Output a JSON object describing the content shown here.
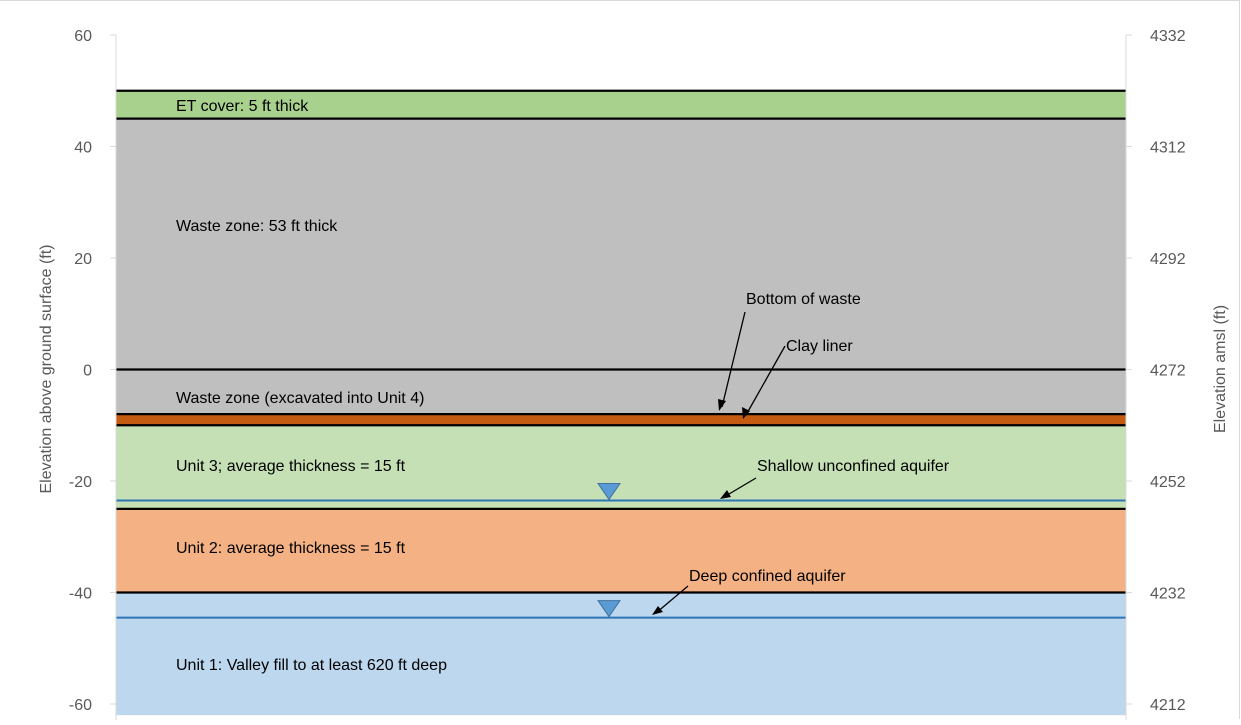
{
  "chart_data": {
    "type": "diagram",
    "y_left": {
      "label": "Elevation above ground surface (ft)",
      "range": [
        -60,
        60
      ],
      "ticks": [
        60,
        40,
        20,
        0,
        -20,
        -40,
        -60
      ]
    },
    "y_right": {
      "label": "Elevation amsl (ft)",
      "ticks": [
        4332,
        4312,
        4292,
        4272,
        4252,
        4232,
        4212
      ]
    },
    "layers": [
      {
        "id": "et-cover",
        "label": "ET cover: 5 ft thick",
        "top": 50,
        "bottom": 45,
        "color": "#a9d18e"
      },
      {
        "id": "waste-zone",
        "label": "Waste zone: 53 ft thick",
        "top": 45,
        "bottom": 0,
        "color": "#bfbfbf"
      },
      {
        "id": "waste-zone-unit4",
        "label": "Waste zone (excavated into Unit 4)",
        "top": 0,
        "bottom": -8,
        "color": "#bfbfbf"
      },
      {
        "id": "clay-liner",
        "label": "",
        "top": -8,
        "bottom": -10,
        "color": "#c55a11"
      },
      {
        "id": "unit-3",
        "label": "Unit 3; average thickness = 15 ft",
        "top": -10,
        "bottom": -25,
        "color": "#c5e0b4"
      },
      {
        "id": "unit-2",
        "label": "Unit 2: average thickness = 15 ft",
        "top": -25,
        "bottom": -40,
        "color": "#f4b183"
      },
      {
        "id": "unit-1",
        "label": "Unit 1: Valley fill to at least 620 ft deep",
        "top": -40,
        "bottom": -62,
        "color": "#bdd7ee"
      }
    ],
    "boundaries": [
      50,
      45,
      0,
      -8,
      -10,
      -25,
      -40
    ],
    "water_tables": [
      {
        "id": "shallow",
        "elevation": -23.5
      },
      {
        "id": "deep",
        "elevation": -44.5
      }
    ],
    "annotations": [
      {
        "id": "bottom-of-waste",
        "text": "Bottom of waste"
      },
      {
        "id": "clay-liner",
        "text": "Clay liner"
      },
      {
        "id": "shallow-aquifer",
        "text": "Shallow unconfined aquifer"
      },
      {
        "id": "deep-aquifer",
        "text": "Deep confined aquifer"
      }
    ]
  }
}
